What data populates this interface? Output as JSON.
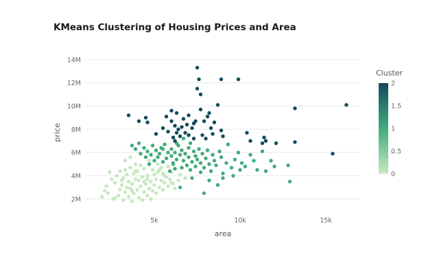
{
  "chart_data": {
    "type": "scatter",
    "title": "KMeans Clustering of Housing Prices and Area",
    "xlabel": "area",
    "ylabel": "price",
    "xlim": [
      1000,
      17000
    ],
    "ylim": [
      1400000,
      14400000
    ],
    "x_ticks": [
      5000,
      10000,
      15000
    ],
    "x_tick_labels": [
      "5k",
      "10k",
      "15k"
    ],
    "y_ticks": [
      2000000,
      4000000,
      6000000,
      8000000,
      10000000,
      12000000,
      14000000
    ],
    "y_tick_labels": [
      "2M",
      "4M",
      "6M",
      "8M",
      "10M",
      "12M",
      "14M"
    ],
    "grid": true,
    "colorbar": {
      "title": "Cluster",
      "range": [
        0,
        2
      ],
      "ticks": [
        0,
        0.5,
        1,
        1.5,
        2
      ],
      "tick_labels": [
        "0",
        "0.5",
        "1",
        "1.5",
        "2"
      ],
      "colors": [
        "#c7e9c0",
        "#41ab7d",
        "#134b5c"
      ]
    },
    "series": [
      {
        "cluster": 0,
        "color": "#c7e9c0",
        "points": [
          [
            1950,
            2200
          ],
          [
            2100,
            2700
          ],
          [
            2200,
            3100
          ],
          [
            2300,
            2500
          ],
          [
            2400,
            4300
          ],
          [
            2500,
            3700
          ],
          [
            2600,
            2000
          ],
          [
            2700,
            3400
          ],
          [
            2800,
            4000
          ],
          [
            2900,
            2300
          ],
          [
            3000,
            2800
          ],
          [
            3000,
            4400
          ],
          [
            3100,
            3200
          ],
          [
            3200,
            1900
          ],
          [
            3200,
            3800
          ],
          [
            3300,
            2600
          ],
          [
            3300,
            4500
          ],
          [
            3400,
            3000
          ],
          [
            3400,
            4100
          ],
          [
            3500,
            2200
          ],
          [
            3500,
            3500
          ],
          [
            3600,
            2900
          ],
          [
            3600,
            4700
          ],
          [
            3700,
            1800
          ],
          [
            3700,
            3300
          ],
          [
            3800,
            2500
          ],
          [
            3800,
            4200
          ],
          [
            3900,
            3700
          ],
          [
            3900,
            5000
          ],
          [
            4000,
            2800
          ],
          [
            4000,
            4400
          ],
          [
            4100,
            2100
          ],
          [
            4100,
            3600
          ],
          [
            4200,
            3100
          ],
          [
            4200,
            4900
          ],
          [
            4300,
            1900
          ],
          [
            4300,
            3900
          ],
          [
            4400,
            2600
          ],
          [
            4400,
            4600
          ],
          [
            4500,
            3300
          ],
          [
            4600,
            2300
          ],
          [
            4600,
            4000
          ],
          [
            4700,
            2900
          ],
          [
            4700,
            5300
          ],
          [
            4800,
            3500
          ],
          [
            4900,
            2700
          ],
          [
            4900,
            4500
          ],
          [
            5000,
            3200
          ],
          [
            5000,
            4100
          ],
          [
            5100,
            2500
          ],
          [
            5100,
            3700
          ],
          [
            5200,
            4300
          ],
          [
            5200,
            5000
          ],
          [
            5300,
            3000
          ],
          [
            5400,
            3600
          ],
          [
            5400,
            4700
          ],
          [
            5500,
            2800
          ],
          [
            5500,
            4200
          ],
          [
            5600,
            3400
          ],
          [
            5700,
            3900
          ],
          [
            5800,
            3100
          ],
          [
            5800,
            4800
          ],
          [
            5900,
            3700
          ],
          [
            6000,
            4300
          ],
          [
            6100,
            3300
          ],
          [
            6200,
            2900
          ],
          [
            6400,
            3600
          ],
          [
            6500,
            4100
          ],
          [
            6800,
            3800
          ],
          [
            3300,
            5300
          ],
          [
            3600,
            5600
          ],
          [
            2700,
            2100
          ],
          [
            4800,
            2000
          ],
          [
            3100,
            3600
          ],
          [
            3700,
            2700
          ],
          [
            4400,
            3500
          ],
          [
            4600,
            3700
          ],
          [
            5300,
            4500
          ],
          [
            5600,
            4000
          ],
          [
            6000,
            3400
          ],
          [
            3900,
            4400
          ]
        ]
      },
      {
        "cluster": 1,
        "color": "#41ab7d",
        "points": [
          [
            3700,
            6600
          ],
          [
            3900,
            6300
          ],
          [
            4100,
            6800
          ],
          [
            4200,
            5900
          ],
          [
            4400,
            6400
          ],
          [
            4500,
            5600
          ],
          [
            4600,
            6100
          ],
          [
            4700,
            5000
          ],
          [
            4800,
            5800
          ],
          [
            4900,
            6600
          ],
          [
            5000,
            5300
          ],
          [
            5100,
            6200
          ],
          [
            5200,
            5600
          ],
          [
            5300,
            5900
          ],
          [
            5400,
            6400
          ],
          [
            5500,
            5200
          ],
          [
            5600,
            6700
          ],
          [
            5700,
            5500
          ],
          [
            5800,
            6000
          ],
          [
            5900,
            4400
          ],
          [
            6000,
            5700
          ],
          [
            6000,
            6300
          ],
          [
            6100,
            5100
          ],
          [
            6200,
            6000
          ],
          [
            6200,
            4600
          ],
          [
            6300,
            5400
          ],
          [
            6400,
            6600
          ],
          [
            6500,
            5800
          ],
          [
            6600,
            4700
          ],
          [
            6600,
            6200
          ],
          [
            6700,
            5300
          ],
          [
            6800,
            5900
          ],
          [
            6900,
            4900
          ],
          [
            7000,
            6400
          ],
          [
            7000,
            5600
          ],
          [
            7100,
            4500
          ],
          [
            7200,
            5200
          ],
          [
            7300,
            6100
          ],
          [
            7400,
            4800
          ],
          [
            7400,
            5700
          ],
          [
            7500,
            5400
          ],
          [
            7600,
            6300
          ],
          [
            7700,
            4300
          ],
          [
            7700,
            5100
          ],
          [
            7800,
            5900
          ],
          [
            7900,
            4700
          ],
          [
            8000,
            5500
          ],
          [
            8100,
            6200
          ],
          [
            8200,
            5000
          ],
          [
            8300,
            4400
          ],
          [
            8400,
            5800
          ],
          [
            8500,
            5300
          ],
          [
            8600,
            4900
          ],
          [
            8800,
            6100
          ],
          [
            8900,
            5600
          ],
          [
            9000,
            4200
          ],
          [
            9200,
            5100
          ],
          [
            9300,
            6700
          ],
          [
            9500,
            4700
          ],
          [
            9700,
            5400
          ],
          [
            9900,
            6000
          ],
          [
            10100,
            5100
          ],
          [
            10300,
            4800
          ],
          [
            10600,
            5800
          ],
          [
            10800,
            5300
          ],
          [
            11000,
            4500
          ],
          [
            11300,
            6100
          ],
          [
            11500,
            4400
          ],
          [
            11800,
            5300
          ],
          [
            12000,
            4800
          ],
          [
            12800,
            4900
          ],
          [
            12900,
            3500
          ],
          [
            7900,
            2500
          ],
          [
            8700,
            3200
          ],
          [
            6500,
            3000
          ],
          [
            6100,
            5000
          ],
          [
            7200,
            3800
          ],
          [
            8200,
            3600
          ],
          [
            9000,
            3800
          ],
          [
            9600,
            4000
          ],
          [
            10000,
            4500
          ],
          [
            5500,
            6300
          ],
          [
            6300,
            6800
          ],
          [
            6700,
            7200
          ],
          [
            7100,
            6800
          ]
        ]
      },
      {
        "cluster": 2,
        "color": "#134b5c",
        "points": [
          [
            3500,
            9200
          ],
          [
            4100,
            8700
          ],
          [
            4500,
            9000
          ],
          [
            4600,
            8600
          ],
          [
            5100,
            7600
          ],
          [
            5500,
            8100
          ],
          [
            5800,
            7800
          ],
          [
            6000,
            8700
          ],
          [
            6000,
            9600
          ],
          [
            6100,
            7300
          ],
          [
            6200,
            8300
          ],
          [
            6200,
            7000
          ],
          [
            6300,
            9400
          ],
          [
            6400,
            8000
          ],
          [
            6500,
            7400
          ],
          [
            6700,
            8900
          ],
          [
            6800,
            7700
          ],
          [
            6900,
            8400
          ],
          [
            7000,
            9200
          ],
          [
            7000,
            7500
          ],
          [
            7200,
            8100
          ],
          [
            7300,
            7200
          ],
          [
            7400,
            8700
          ],
          [
            7500,
            11500
          ],
          [
            7500,
            13300
          ],
          [
            7600,
            12300
          ],
          [
            7700,
            9700
          ],
          [
            7700,
            11000
          ],
          [
            7800,
            7500
          ],
          [
            7900,
            8700
          ],
          [
            8000,
            7200
          ],
          [
            8200,
            9400
          ],
          [
            8300,
            8100
          ],
          [
            8400,
            7600
          ],
          [
            8500,
            8600
          ],
          [
            8700,
            10100
          ],
          [
            8900,
            7900
          ],
          [
            8900,
            12300
          ],
          [
            9000,
            7400
          ],
          [
            9900,
            12300
          ],
          [
            10400,
            7700
          ],
          [
            10600,
            7000
          ],
          [
            11300,
            6800
          ],
          [
            11400,
            7300
          ],
          [
            11500,
            7000
          ],
          [
            12100,
            6800
          ],
          [
            13200,
            9800
          ],
          [
            13200,
            6900
          ],
          [
            15400,
            5900
          ],
          [
            16200,
            10100
          ],
          [
            5700,
            9100
          ],
          [
            6600,
            8200
          ],
          [
            7300,
            8500
          ],
          [
            6300,
            7700
          ],
          [
            8100,
            9100
          ]
        ]
      }
    ]
  }
}
